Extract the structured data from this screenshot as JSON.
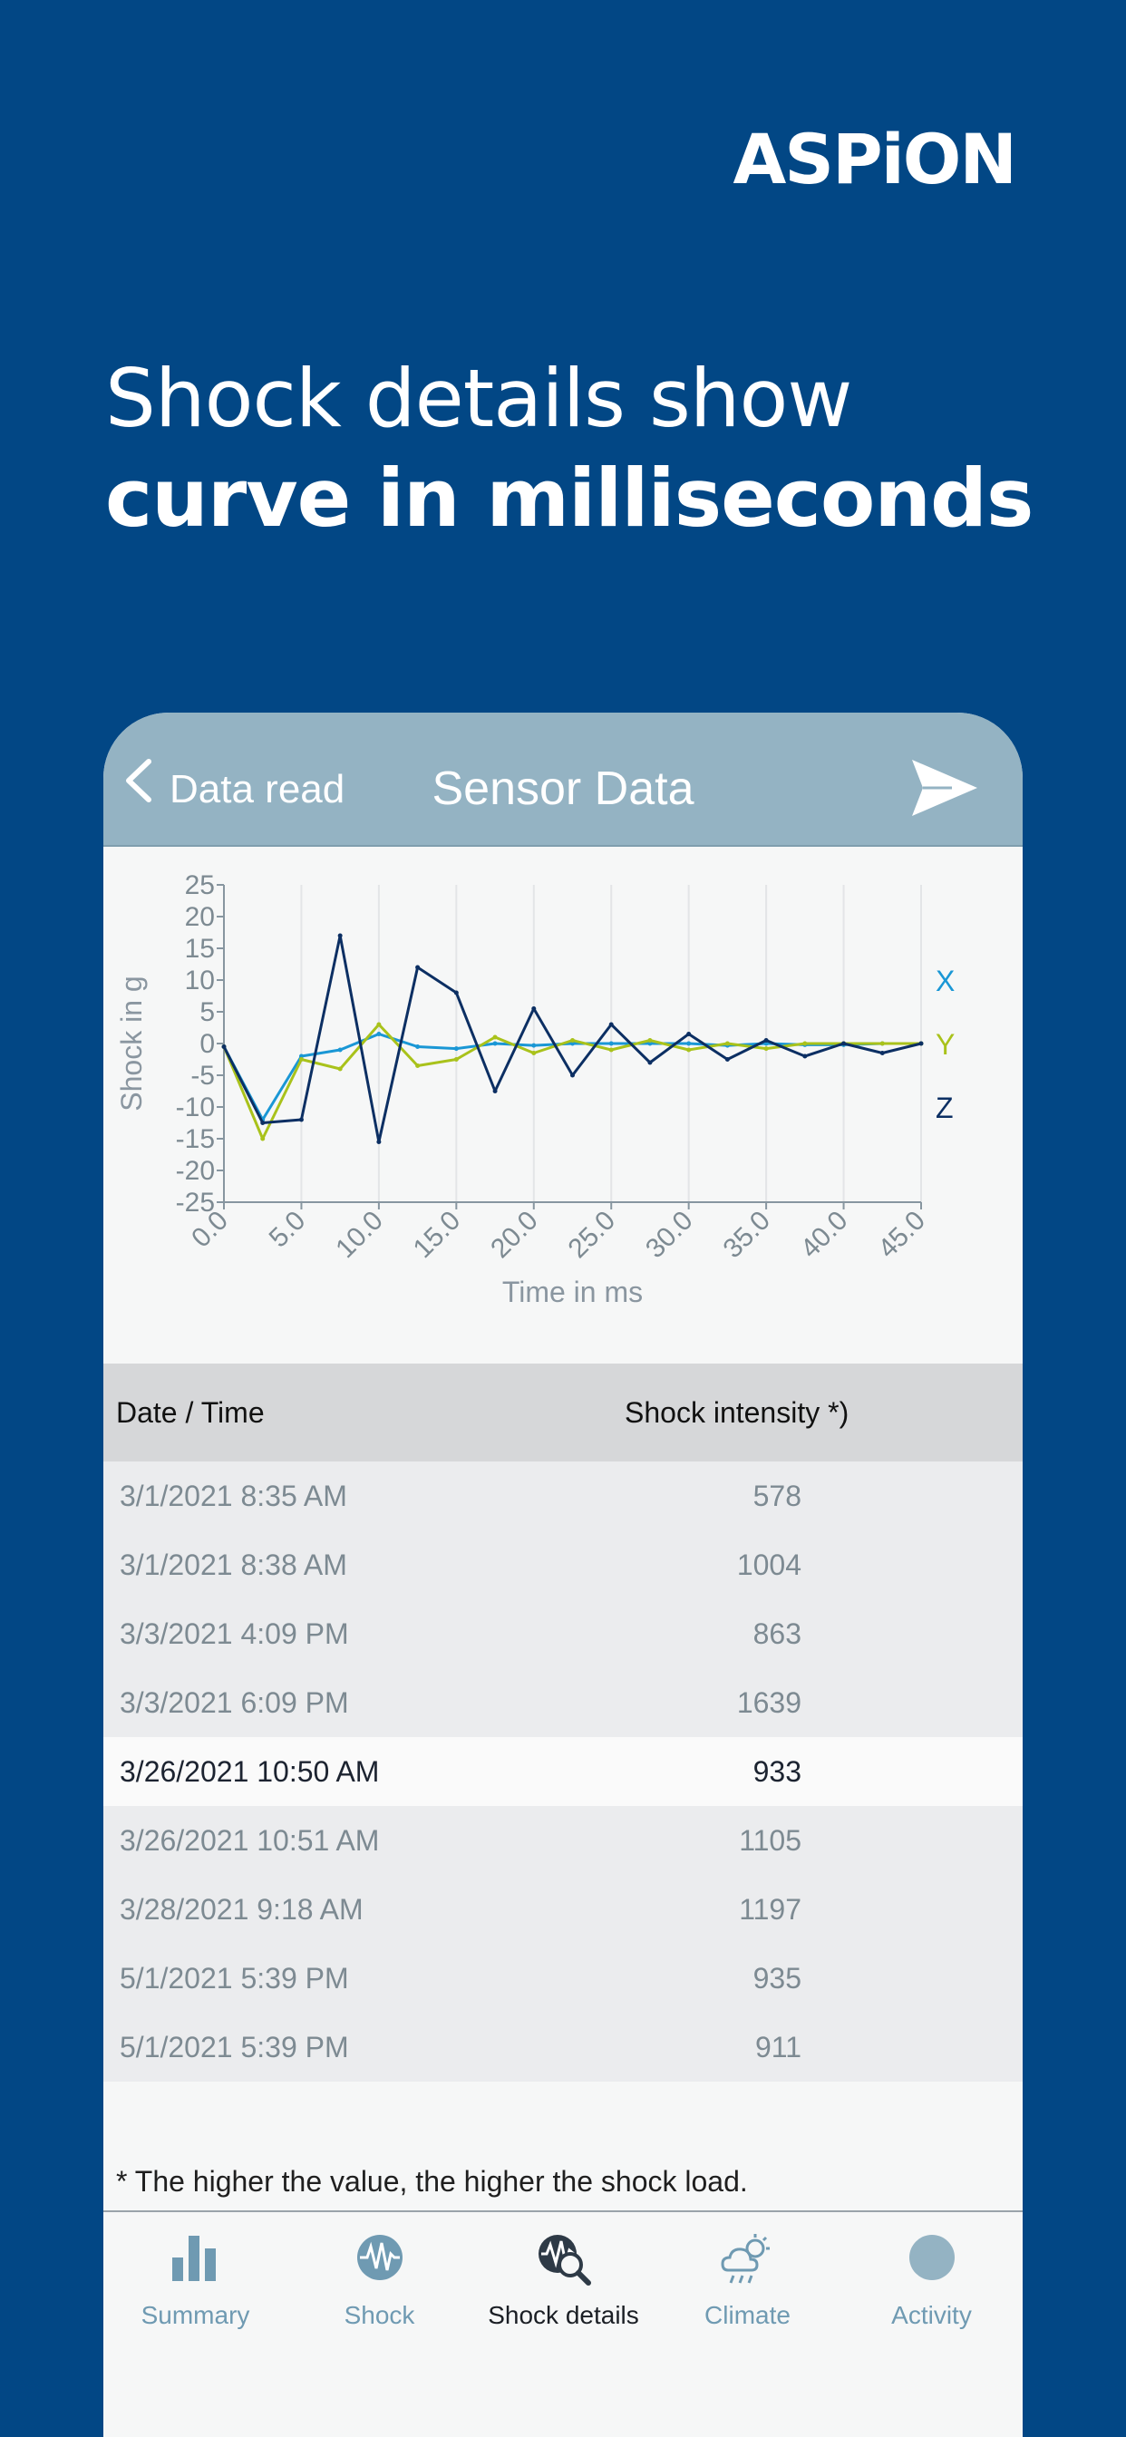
{
  "brand": {
    "logo_text": "ASPiON"
  },
  "hero": {
    "line1": "Shock details show",
    "line2": "curve in milliseconds"
  },
  "nav": {
    "back_label": "Data read",
    "title": "Sensor Data"
  },
  "chart_data": {
    "type": "line",
    "ylabel": "Shock in g",
    "xlabel": "Time in ms",
    "ylim": [
      -25,
      25
    ],
    "xlim": [
      0,
      45
    ],
    "y_ticks": [
      25,
      20,
      15,
      10,
      5,
      0,
      -5,
      -10,
      -15,
      -20,
      -25
    ],
    "x_ticks": [
      "0.0",
      "5.0",
      "10.0",
      "15.0",
      "20.0",
      "25.0",
      "30.0",
      "35.0",
      "40.0",
      "45.0"
    ],
    "grid": "vertical",
    "legend_position": "right",
    "x": [
      0,
      2.5,
      5,
      7.5,
      10,
      12.5,
      15,
      17.5,
      20,
      22.5,
      25,
      27.5,
      30,
      32.5,
      35,
      37.5,
      40,
      42.5,
      45
    ],
    "series": [
      {
        "name": "X",
        "color": "#1a97d5",
        "values": [
          -0.5,
          -12,
          -2,
          -1,
          1.5,
          -0.5,
          -0.8,
          0,
          -0.3,
          0,
          0,
          0,
          0,
          -0.3,
          0,
          -0.2,
          -0.2,
          0,
          0
        ]
      },
      {
        "name": "Y",
        "color": "#a9c21b",
        "values": [
          -0.5,
          -15,
          -2.5,
          -4,
          3,
          -3.5,
          -2.5,
          1,
          -1.5,
          0.5,
          -1,
          0.5,
          -1,
          0,
          -0.8,
          0,
          0,
          0,
          0
        ]
      },
      {
        "name": "Z",
        "color": "#0c2f63",
        "values": [
          -0.5,
          -12.5,
          -12,
          17,
          -15.5,
          12,
          8,
          -7.5,
          5.5,
          -5,
          3,
          -3,
          1.5,
          -2.5,
          0.5,
          -2,
          0,
          -1.5,
          0
        ]
      }
    ]
  },
  "table": {
    "col_date": "Date / Time",
    "col_value": "Shock intensity *)",
    "rows": [
      {
        "date": "3/1/2021 8:35 AM",
        "value": "578"
      },
      {
        "date": "3/1/2021 8:38 AM",
        "value": "1004"
      },
      {
        "date": "3/3/2021 4:09 PM",
        "value": "863"
      },
      {
        "date": "3/3/2021 6:09 PM",
        "value": "1639"
      },
      {
        "date": "3/26/2021 10:50 AM",
        "value": "933"
      },
      {
        "date": "3/26/2021 10:51 AM",
        "value": "1105"
      },
      {
        "date": "3/28/2021 9:18 AM",
        "value": "1197"
      },
      {
        "date": "5/1/2021 5:39 PM",
        "value": "935"
      },
      {
        "date": "5/1/2021 5:39 PM",
        "value": "911"
      }
    ]
  },
  "footnote": "* The higher the value, the higher the shock load.",
  "tabs": [
    {
      "label": "Summary",
      "icon": "bar-chart-icon"
    },
    {
      "label": "Shock",
      "icon": "wave-icon"
    },
    {
      "label": "Shock details",
      "icon": "wave-magnify-icon"
    },
    {
      "label": "Climate",
      "icon": "cloud-sun-icon"
    },
    {
      "label": "Activity",
      "icon": "circle-icon"
    }
  ],
  "colors": {
    "background": "#024785",
    "nav": "#94b3c3",
    "tab_inactive": "#6f9ab2",
    "logo_dot": "#b6c91e"
  }
}
